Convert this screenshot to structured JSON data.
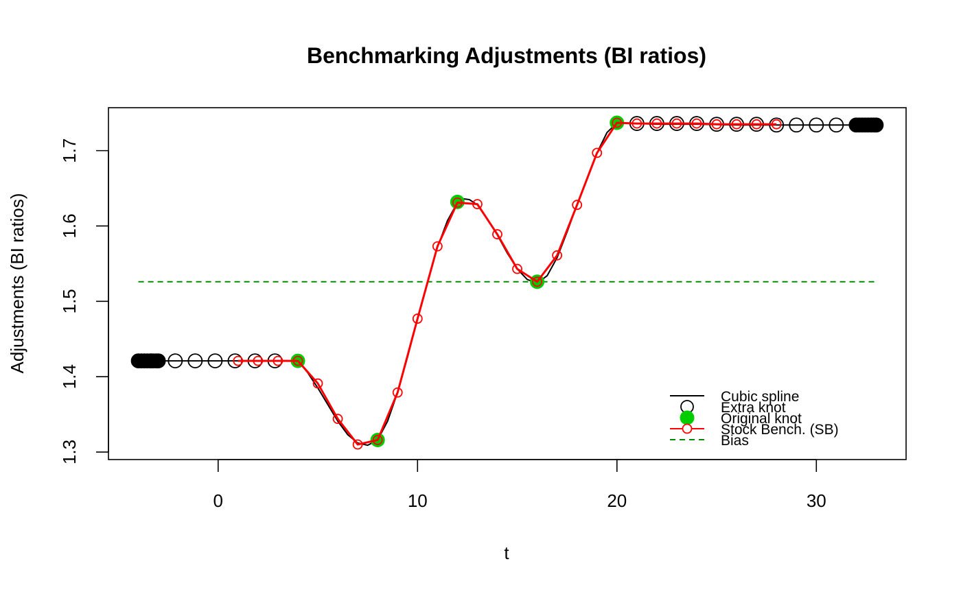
{
  "chart_data": {
    "type": "line",
    "title": "Benchmarking Adjustments (BI ratios)",
    "xlabel": "t",
    "ylabel": "Adjustments (BI ratios)",
    "xlim": [
      -5.5,
      34.5
    ],
    "ylim": [
      1.29,
      1.757
    ],
    "x_ticks": [
      "0",
      "10",
      "20",
      "30"
    ],
    "y_ticks": [
      "1.3",
      "1.4",
      "1.5",
      "1.6",
      "1.7"
    ],
    "colors": {
      "spline": "#000000",
      "extra_knot": "#000000",
      "original_knot": "#00cd00",
      "stock_bench": "#ff0000",
      "bias": "#008b00"
    },
    "cubic_spline": {
      "x": [
        -4.0,
        -3.0,
        -2.0,
        -1.0,
        0.0,
        1.0,
        2.0,
        3.0,
        4.0,
        4.5,
        5.0,
        5.5,
        6.0,
        6.5,
        7.0,
        7.5,
        8.0,
        8.5,
        9.0,
        9.5,
        10.0,
        10.5,
        11.0,
        11.5,
        12.0,
        12.3,
        12.6,
        13.0,
        13.5,
        14.0,
        14.5,
        15.0,
        15.5,
        16.0,
        16.5,
        17.0,
        17.5,
        18.0,
        18.5,
        19.0,
        19.5,
        20.0,
        21.0,
        22.0,
        24.0,
        26.0,
        28.0,
        30.0,
        32.0,
        33.0
      ],
      "y": [
        1.421,
        1.421,
        1.421,
        1.421,
        1.421,
        1.421,
        1.421,
        1.421,
        1.421,
        1.405,
        1.385,
        1.363,
        1.341,
        1.323,
        1.312,
        1.309,
        1.316,
        1.341,
        1.379,
        1.426,
        1.477,
        1.526,
        1.572,
        1.607,
        1.631,
        1.636,
        1.635,
        1.628,
        1.609,
        1.588,
        1.564,
        1.543,
        1.529,
        1.524,
        1.534,
        1.558,
        1.592,
        1.628,
        1.663,
        1.697,
        1.724,
        1.737,
        1.736,
        1.735,
        1.735,
        1.734,
        1.734,
        1.734,
        1.734,
        1.734
      ]
    },
    "extra_knots": {
      "x": [
        -3.35,
        -2.15,
        -1.15,
        -0.15,
        0.85,
        1.85,
        2.85,
        21.0,
        22.0,
        23.0,
        24.0,
        25.0,
        26.0,
        27.0,
        28.0,
        29.0,
        30.0,
        31.0
      ],
      "y": [
        1.421,
        1.421,
        1.421,
        1.421,
        1.421,
        1.421,
        1.421,
        1.736,
        1.736,
        1.736,
        1.736,
        1.735,
        1.735,
        1.735,
        1.734,
        1.734,
        1.734,
        1.734
      ]
    },
    "extra_knot_clusters": [
      {
        "x": [
          -4.0,
          -3.85,
          -3.7,
          -3.55,
          -3.4,
          -3.25,
          -3.1,
          -3.0
        ],
        "y": 1.421
      },
      {
        "x": [
          32.0,
          32.15,
          32.3,
          32.45,
          32.6,
          32.75,
          32.9,
          33.0
        ],
        "y": 1.734
      }
    ],
    "original_knots": {
      "x": [
        4,
        8,
        12,
        16,
        20
      ],
      "y": [
        1.421,
        1.316,
        1.632,
        1.526,
        1.737
      ]
    },
    "stock_bench": {
      "x": [
        1,
        2,
        3,
        4,
        5,
        6,
        7,
        8,
        9,
        10,
        11,
        12,
        13,
        14,
        15,
        16,
        17,
        18,
        19,
        20,
        21,
        22,
        23,
        24,
        25,
        26,
        27,
        28
      ],
      "y": [
        1.421,
        1.421,
        1.421,
        1.421,
        1.391,
        1.344,
        1.31,
        1.316,
        1.379,
        1.477,
        1.573,
        1.631,
        1.629,
        1.589,
        1.543,
        1.526,
        1.561,
        1.628,
        1.697,
        1.737,
        1.736,
        1.736,
        1.736,
        1.736,
        1.735,
        1.735,
        1.735,
        1.735
      ]
    },
    "bias": {
      "x": [
        -4,
        33
      ],
      "y": 1.526
    },
    "legend": {
      "position": "bottom-right",
      "entries": [
        "Cubic spline",
        "Extra knot",
        "Original knot",
        "Stock Bench. (SB)",
        "Bias"
      ]
    }
  }
}
